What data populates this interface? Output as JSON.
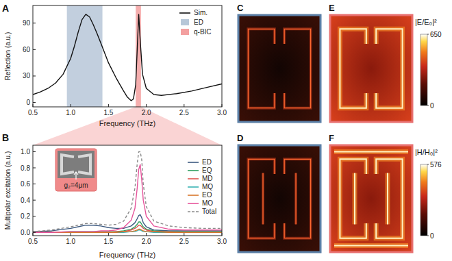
{
  "chart_data": [
    {
      "type": "line",
      "title": "A",
      "x_label": "Frequency (THz)",
      "y_label": "Reflection (a.u.)",
      "x": [
        0.5,
        0.6,
        0.7,
        0.8,
        0.9,
        1.0,
        1.05,
        1.1,
        1.15,
        1.2,
        1.25,
        1.3,
        1.35,
        1.4,
        1.5,
        1.6,
        1.7,
        1.75,
        1.8,
        1.83,
        1.86,
        1.88,
        1.9,
        1.92,
        1.95,
        2.0,
        2.1,
        2.2,
        2.4,
        2.6,
        2.8,
        3.0
      ],
      "series": [
        {
          "name": "Sim.",
          "color": "#111111",
          "values": [
            9,
            12,
            16,
            22,
            32,
            50,
            64,
            80,
            94,
            100,
            97,
            88,
            78,
            67,
            45,
            28,
            13,
            6,
            2,
            4,
            20,
            60,
            100,
            70,
            32,
            16,
            9,
            8,
            10,
            13,
            17,
            21
          ]
        }
      ],
      "shaded": [
        {
          "name": "ED",
          "color": "#b7c7d8",
          "range": [
            0.95,
            1.42
          ]
        },
        {
          "name": "q-BIC",
          "color": "#f3a0a0",
          "range": [
            1.86,
            1.93
          ]
        }
      ],
      "xlim": [
        0.5,
        3.0
      ],
      "ylim": [
        -5,
        110
      ],
      "xticks": [
        0.5,
        {
          "value": 1,
          "label": "1.0"
        },
        1.5,
        {
          "value": 2,
          "label": "2.0"
        },
        2.5,
        {
          "value": 3,
          "label": "3.0"
        }
      ],
      "yticks": [
        0,
        30,
        60,
        90
      ],
      "legend": "upper right",
      "grid": false
    },
    {
      "type": "line",
      "title": "B",
      "x_label": "Frequency (THz)",
      "y_label": "Multipolar excitation (a.u.)",
      "x": [
        0.5,
        0.75,
        1.0,
        1.1,
        1.2,
        1.3,
        1.4,
        1.5,
        1.6,
        1.7,
        1.8,
        1.85,
        1.88,
        1.9,
        1.92,
        1.94,
        1.96,
        2.0,
        2.1,
        2.3,
        2.5,
        2.75,
        3.0
      ],
      "series": [
        {
          "name": "ED",
          "color": "#3d5a80",
          "values": [
            0.01,
            0.02,
            0.05,
            0.07,
            0.09,
            0.09,
            0.08,
            0.06,
            0.05,
            0.05,
            0.08,
            0.12,
            0.17,
            0.21,
            0.22,
            0.18,
            0.12,
            0.07,
            0.03,
            0.02,
            0.02,
            0.02,
            0.02
          ]
        },
        {
          "name": "EQ",
          "color": "#2e9e5e",
          "values": [
            0,
            0,
            0.01,
            0.01,
            0.01,
            0.01,
            0.01,
            0.01,
            0.01,
            0.02,
            0.04,
            0.07,
            0.1,
            0.13,
            0.13,
            0.1,
            0.07,
            0.04,
            0.02,
            0.01,
            0.01,
            0.01,
            0.01
          ]
        },
        {
          "name": "MD",
          "color": "#e0524f",
          "values": [
            0,
            0,
            0,
            0,
            0,
            0,
            0,
            0,
            0.01,
            0.01,
            0.03,
            0.05,
            0.07,
            0.09,
            0.09,
            0.07,
            0.05,
            0.03,
            0.01,
            0.01,
            0,
            0,
            0
          ]
        },
        {
          "name": "MQ",
          "color": "#39b3b3",
          "values": [
            0,
            0,
            0,
            0,
            0,
            0,
            0,
            0,
            0,
            0,
            0.01,
            0.01,
            0.02,
            0.03,
            0.03,
            0.02,
            0.01,
            0.01,
            0,
            0,
            0,
            0,
            0
          ]
        },
        {
          "name": "EO",
          "color": "#d9772b",
          "values": [
            0,
            0,
            0,
            0,
            0,
            0,
            0,
            0,
            0,
            0.01,
            0.01,
            0.02,
            0.03,
            0.04,
            0.04,
            0.03,
            0.02,
            0.01,
            0.01,
            0,
            0,
            0,
            0
          ]
        },
        {
          "name": "MO",
          "color": "#e6539b",
          "values": [
            0,
            0,
            0.01,
            0.01,
            0.01,
            0.01,
            0.02,
            0.02,
            0.03,
            0.06,
            0.15,
            0.3,
            0.55,
            0.78,
            0.84,
            0.65,
            0.4,
            0.2,
            0.08,
            0.04,
            0.03,
            0.03,
            0.03
          ]
        },
        {
          "name": "Total",
          "color": "#8a8a8a",
          "line_style": "dashed",
          "values": [
            0.01,
            0.03,
            0.07,
            0.09,
            0.11,
            0.11,
            0.1,
            0.09,
            0.1,
            0.14,
            0.3,
            0.55,
            0.85,
            1.0,
            1.0,
            0.9,
            0.6,
            0.32,
            0.14,
            0.08,
            0.06,
            0.05,
            0.05
          ]
        }
      ],
      "annotations": [
        "g₂=4μm"
      ],
      "xlim": [
        0.5,
        3.0
      ],
      "ylim": [
        -0.04,
        1.08
      ],
      "xticks": [
        0.5,
        {
          "value": 1,
          "label": "1.0"
        },
        1.5,
        {
          "value": 2,
          "label": "2.0"
        },
        2.5,
        {
          "value": 3,
          "label": "3.0"
        }
      ],
      "yticks": [
        {
          "value": 0,
          "label": "0.0"
        },
        0.2,
        0.4,
        0.6,
        0.8,
        {
          "value": 1,
          "label": "1.0"
        }
      ],
      "legend": "right",
      "grid": false
    }
  ],
  "colorbars": [
    {
      "label": "|E/E₀|²",
      "range": [
        0,
        650
      ],
      "ticks": [
        0,
        650
      ],
      "maps": [
        {
          "label": "C",
          "color": "#5b7fa6"
        },
        {
          "label": "E",
          "color": "#e87070"
        }
      ]
    },
    {
      "label": "|H/H₀|²",
      "range": [
        0,
        576
      ],
      "ticks": [
        0,
        576
      ],
      "maps": [
        {
          "label": "D",
          "color": "#5b7fa6"
        },
        {
          "label": "F",
          "color": "#e87070"
        }
      ]
    }
  ]
}
